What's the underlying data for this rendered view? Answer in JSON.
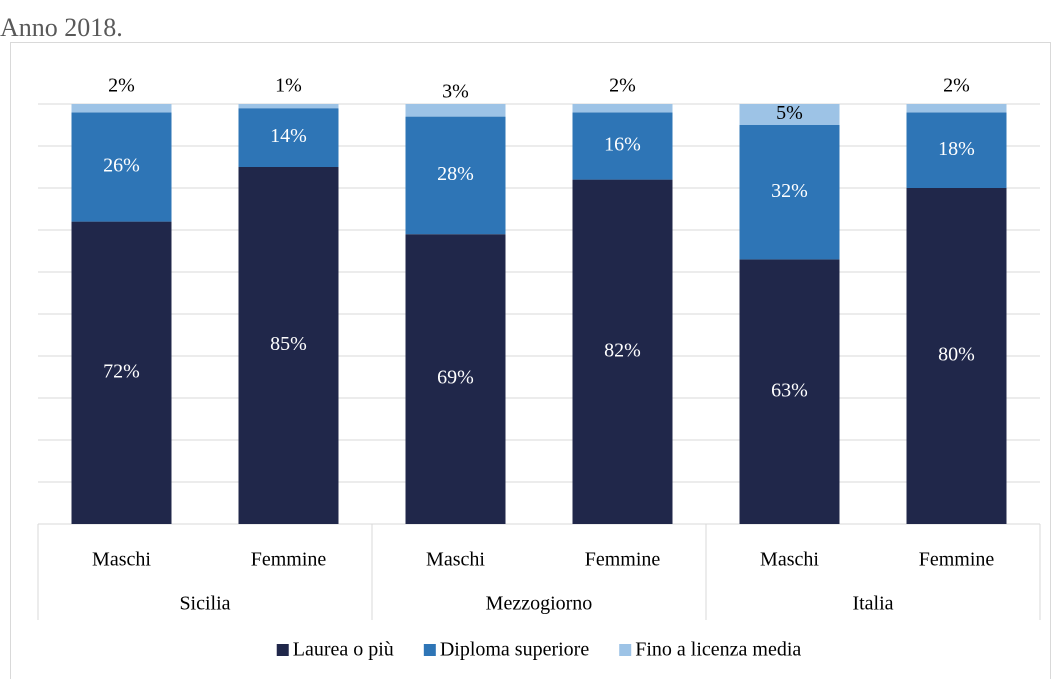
{
  "chart_data": {
    "type": "stacked_bar",
    "title": "Anno 2018.",
    "categories": [
      "Maschi",
      "Femmine",
      "Maschi",
      "Femmine",
      "Maschi",
      "Femmine"
    ],
    "groups": [
      "Sicilia",
      "Mezzogiorno",
      "Italia"
    ],
    "series": [
      {
        "name": "Laurea o più",
        "color": "#20274a",
        "values": [
          72,
          85,
          69,
          82,
          63,
          80
        ],
        "value_labels": [
          "72%",
          "85%",
          "69%",
          "82%",
          "63%",
          "80%"
        ]
      },
      {
        "name": "Diploma superiore",
        "color": "#2e75b6",
        "values": [
          26,
          14,
          28,
          16,
          32,
          18
        ],
        "value_labels": [
          "26%",
          "14%",
          "28%",
          "16%",
          "32%",
          "18%"
        ]
      },
      {
        "name": "Fino a licenza media",
        "color": "#9dc3e6",
        "values": [
          2,
          1,
          3,
          2,
          5,
          2
        ],
        "value_labels": [
          "2%",
          "1%",
          "3%",
          "2%",
          "5%",
          "2%"
        ]
      }
    ],
    "ylim": [
      0,
      100
    ],
    "yticks": [
      0,
      10,
      20,
      30,
      40,
      50,
      60,
      70,
      80,
      90,
      100
    ],
    "grid": true,
    "legend": "bottom"
  }
}
